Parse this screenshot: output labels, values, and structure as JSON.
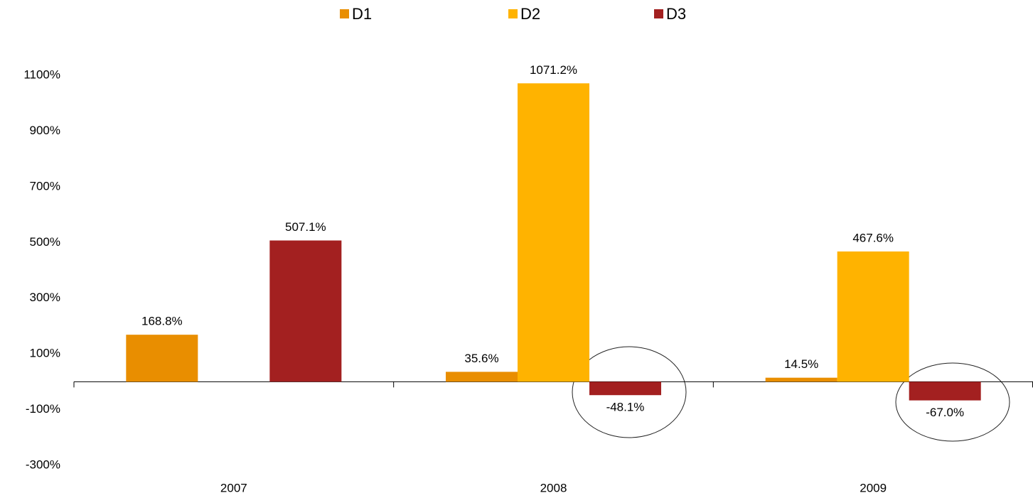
{
  "chart_data": {
    "type": "bar",
    "categories": [
      "2007",
      "2008",
      "2009"
    ],
    "series": [
      {
        "name": "D1",
        "color": "#E98E00",
        "values": [
          168.8,
          35.6,
          14.5
        ],
        "value_labels": [
          "168.8%",
          "35.6%",
          "14.5%"
        ]
      },
      {
        "name": "D2",
        "color": "#FFB300",
        "values": [
          null,
          1071.2,
          467.6
        ],
        "value_labels": [
          null,
          "1071.2%",
          "467.6%"
        ]
      },
      {
        "name": "D3",
        "color": "#A32020",
        "values": [
          507.1,
          -48.1,
          -67.0
        ],
        "value_labels": [
          "507.1%",
          "-48.1%",
          "-67.0%"
        ]
      }
    ],
    "ylim": [
      -300,
      1100
    ],
    "yticks": [
      {
        "value": -300,
        "label": "-300%"
      },
      {
        "value": -100,
        "label": "-100%"
      },
      {
        "value": 100,
        "label": "100%"
      },
      {
        "value": 300,
        "label": "300%"
      },
      {
        "value": 500,
        "label": "500%"
      },
      {
        "value": 700,
        "label": "700%"
      },
      {
        "value": 900,
        "label": "900%"
      },
      {
        "value": 1100,
        "label": "1100%"
      }
    ],
    "grid": false,
    "legend": "top"
  }
}
